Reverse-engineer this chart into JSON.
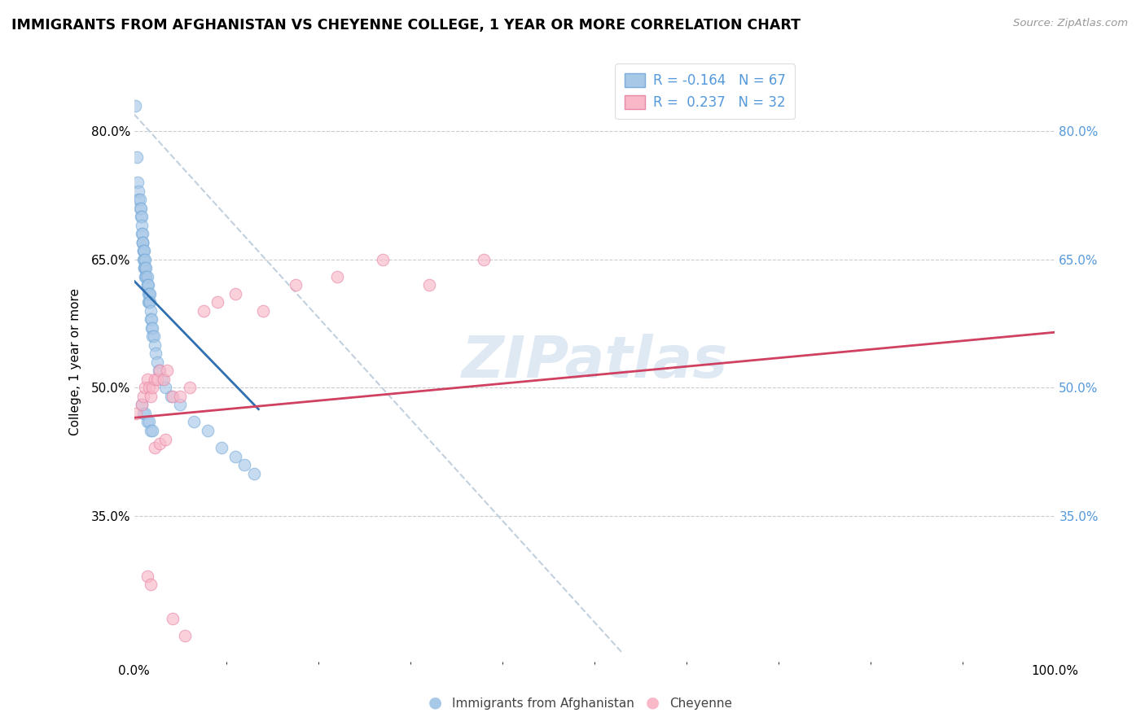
{
  "title": "IMMIGRANTS FROM AFGHANISTAN VS CHEYENNE COLLEGE, 1 YEAR OR MORE CORRELATION CHART",
  "source": "Source: ZipAtlas.com",
  "ylabel": "College, 1 year or more",
  "xlim": [
    0.0,
    1.0
  ],
  "ylim": [
    0.18,
    0.88
  ],
  "yticks": [
    0.35,
    0.5,
    0.65,
    0.8
  ],
  "blue_color": "#a8c8e8",
  "blue_edge_color": "#7aadda",
  "pink_color": "#f8b8c8",
  "pink_edge_color": "#e888a8",
  "blue_line_color": "#3070b0",
  "pink_line_color": "#d04060",
  "grey_line_color": "#b8c8d8",
  "watermark": "ZIPatlas",
  "watermark_color": "#c5d8ec",
  "right_tick_color": "#5599dd",
  "blue_scatter_x": [
    0.001,
    0.003,
    0.004,
    0.005,
    0.005,
    0.006,
    0.006,
    0.007,
    0.007,
    0.008,
    0.008,
    0.008,
    0.009,
    0.009,
    0.009,
    0.009,
    0.01,
    0.01,
    0.01,
    0.011,
    0.011,
    0.011,
    0.011,
    0.012,
    0.012,
    0.012,
    0.013,
    0.013,
    0.013,
    0.014,
    0.014,
    0.014,
    0.015,
    0.015,
    0.015,
    0.016,
    0.016,
    0.017,
    0.017,
    0.018,
    0.018,
    0.019,
    0.019,
    0.02,
    0.02,
    0.021,
    0.022,
    0.023,
    0.025,
    0.027,
    0.03,
    0.034,
    0.04,
    0.05,
    0.065,
    0.08,
    0.095,
    0.11,
    0.12,
    0.13,
    0.008,
    0.01,
    0.012,
    0.014,
    0.016,
    0.018,
    0.02
  ],
  "blue_scatter_y": [
    0.83,
    0.77,
    0.74,
    0.73,
    0.72,
    0.72,
    0.71,
    0.71,
    0.7,
    0.7,
    0.69,
    0.68,
    0.68,
    0.67,
    0.67,
    0.67,
    0.66,
    0.66,
    0.65,
    0.66,
    0.65,
    0.64,
    0.64,
    0.65,
    0.64,
    0.63,
    0.63,
    0.64,
    0.63,
    0.63,
    0.62,
    0.62,
    0.62,
    0.61,
    0.6,
    0.61,
    0.6,
    0.61,
    0.6,
    0.59,
    0.58,
    0.58,
    0.57,
    0.57,
    0.56,
    0.56,
    0.55,
    0.54,
    0.53,
    0.52,
    0.51,
    0.5,
    0.49,
    0.48,
    0.46,
    0.45,
    0.43,
    0.42,
    0.41,
    0.4,
    0.48,
    0.47,
    0.47,
    0.46,
    0.46,
    0.45,
    0.45
  ],
  "pink_scatter_x": [
    0.002,
    0.008,
    0.01,
    0.012,
    0.014,
    0.016,
    0.018,
    0.02,
    0.022,
    0.025,
    0.028,
    0.032,
    0.036,
    0.042,
    0.05,
    0.06,
    0.075,
    0.09,
    0.11,
    0.14,
    0.175,
    0.22,
    0.27,
    0.32,
    0.38,
    0.014,
    0.018,
    0.022,
    0.028,
    0.034,
    0.042,
    0.055
  ],
  "pink_scatter_y": [
    0.47,
    0.48,
    0.49,
    0.5,
    0.51,
    0.5,
    0.49,
    0.5,
    0.51,
    0.51,
    0.52,
    0.51,
    0.52,
    0.49,
    0.49,
    0.5,
    0.59,
    0.6,
    0.61,
    0.59,
    0.62,
    0.63,
    0.65,
    0.62,
    0.65,
    0.28,
    0.27,
    0.43,
    0.435,
    0.44,
    0.23,
    0.21
  ],
  "blue_line_x": [
    0.0,
    0.135
  ],
  "blue_line_y": [
    0.625,
    0.475
  ],
  "pink_line_x": [
    0.0,
    1.0
  ],
  "pink_line_y": [
    0.465,
    0.565
  ],
  "grey_line_x": [
    0.0,
    0.53
  ],
  "grey_line_y": [
    0.82,
    0.19
  ]
}
